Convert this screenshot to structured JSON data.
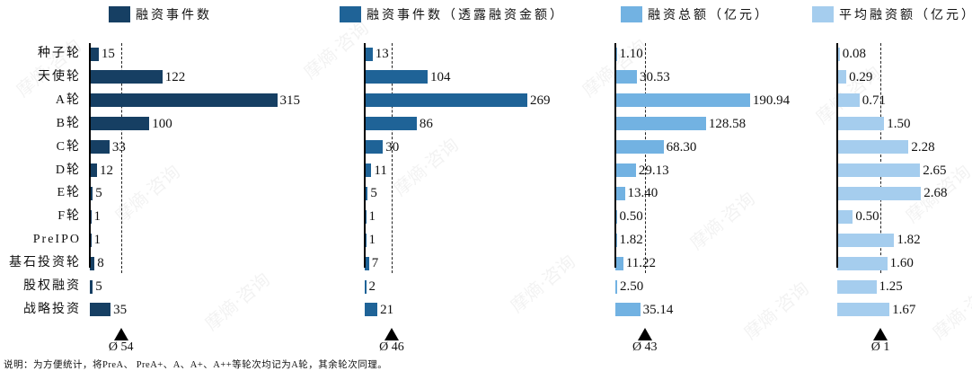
{
  "chart_data": [
    {
      "type": "bar",
      "orientation": "horizontal",
      "title": "融资事件数",
      "categories": [
        "种子轮",
        "天使轮",
        "A轮",
        "B轮",
        "C轮",
        "D轮",
        "E轮",
        "F轮",
        "PreIPO",
        "基石投资轮",
        "股权融资",
        "战略投资"
      ],
      "values": [
        15,
        122,
        315,
        100,
        33,
        12,
        5,
        1,
        1,
        8,
        5,
        35
      ],
      "value_labels": [
        "15",
        "122",
        "315",
        "100",
        "33",
        "12",
        "5",
        "1",
        "1",
        "8",
        "5",
        "35"
      ],
      "mean": 54,
      "mean_label": "Ø 54",
      "color": "#163f63"
    },
    {
      "type": "bar",
      "orientation": "horizontal",
      "title": "融资事件数（透露融资金额）",
      "categories": [
        "种子轮",
        "天使轮",
        "A轮",
        "B轮",
        "C轮",
        "D轮",
        "E轮",
        "F轮",
        "PreIPO",
        "基石投资轮",
        "股权融资",
        "战略投资"
      ],
      "values": [
        13,
        104,
        269,
        86,
        30,
        11,
        5,
        1,
        1,
        7,
        2,
        21
      ],
      "value_labels": [
        "13",
        "104",
        "269",
        "86",
        "30",
        "11",
        "5",
        "1",
        "1",
        "7",
        "2",
        "21"
      ],
      "mean": 46,
      "mean_label": "Ø 46",
      "color": "#1f6397"
    },
    {
      "type": "bar",
      "orientation": "horizontal",
      "title": "融资总额（亿元）",
      "categories": [
        "种子轮",
        "天使轮",
        "A轮",
        "B轮",
        "C轮",
        "D轮",
        "E轮",
        "F轮",
        "PreIPO",
        "基石投资轮",
        "股权融资",
        "战略投资"
      ],
      "values": [
        1.1,
        30.53,
        190.94,
        128.58,
        68.3,
        29.13,
        13.4,
        0.5,
        1.82,
        11.22,
        2.5,
        35.14
      ],
      "value_labels": [
        "1.10",
        "30.53",
        "190.94",
        "128.58",
        "68.30",
        "29.13",
        "13.40",
        "0.50",
        "1.82",
        "11.22",
        "2.50",
        "35.14"
      ],
      "mean": 43,
      "mean_label": "Ø 43",
      "color": "#72b2e2"
    },
    {
      "type": "bar",
      "orientation": "horizontal",
      "title": "平均融资额（亿元）",
      "categories": [
        "种子轮",
        "天使轮",
        "A轮",
        "B轮",
        "C轮",
        "D轮",
        "E轮",
        "F轮",
        "PreIPO",
        "基石投资轮",
        "股权融资",
        "战略投资"
      ],
      "values": [
        0.08,
        0.29,
        0.71,
        1.5,
        2.28,
        2.65,
        2.68,
        0.5,
        1.82,
        1.6,
        1.25,
        1.67
      ],
      "value_labels": [
        "0.08",
        "0.29",
        "0.71",
        "1.50",
        "2.28",
        "2.65",
        "2.68",
        "0.50",
        "1.82",
        "1.60",
        "1.25",
        "1.67"
      ],
      "mean": 1.41,
      "mean_label": "Ø 1",
      "color": "#a5cdee"
    }
  ],
  "legend": [
    {
      "label": "融资事件数",
      "color": "#163f63"
    },
    {
      "label": "融资事件数（透露融资金额）",
      "color": "#1f6397"
    },
    {
      "label": "融资总额（亿元）",
      "color": "#72b2e2"
    },
    {
      "label": "平均融资额（亿元）",
      "color": "#a5cdee"
    }
  ],
  "categories": [
    "种子轮",
    "天使轮",
    "A轮",
    "B轮",
    "C轮",
    "D轮",
    "E轮",
    "F轮",
    "PreIPO",
    "基石投资轮",
    "股权融资",
    "战略投资"
  ],
  "footnote": "说明：为方便统计，将PreA、 PreA+、A、A+、A++等轮次均记为A轮，其余轮次同理。",
  "watermark": "摩熵·咨询"
}
